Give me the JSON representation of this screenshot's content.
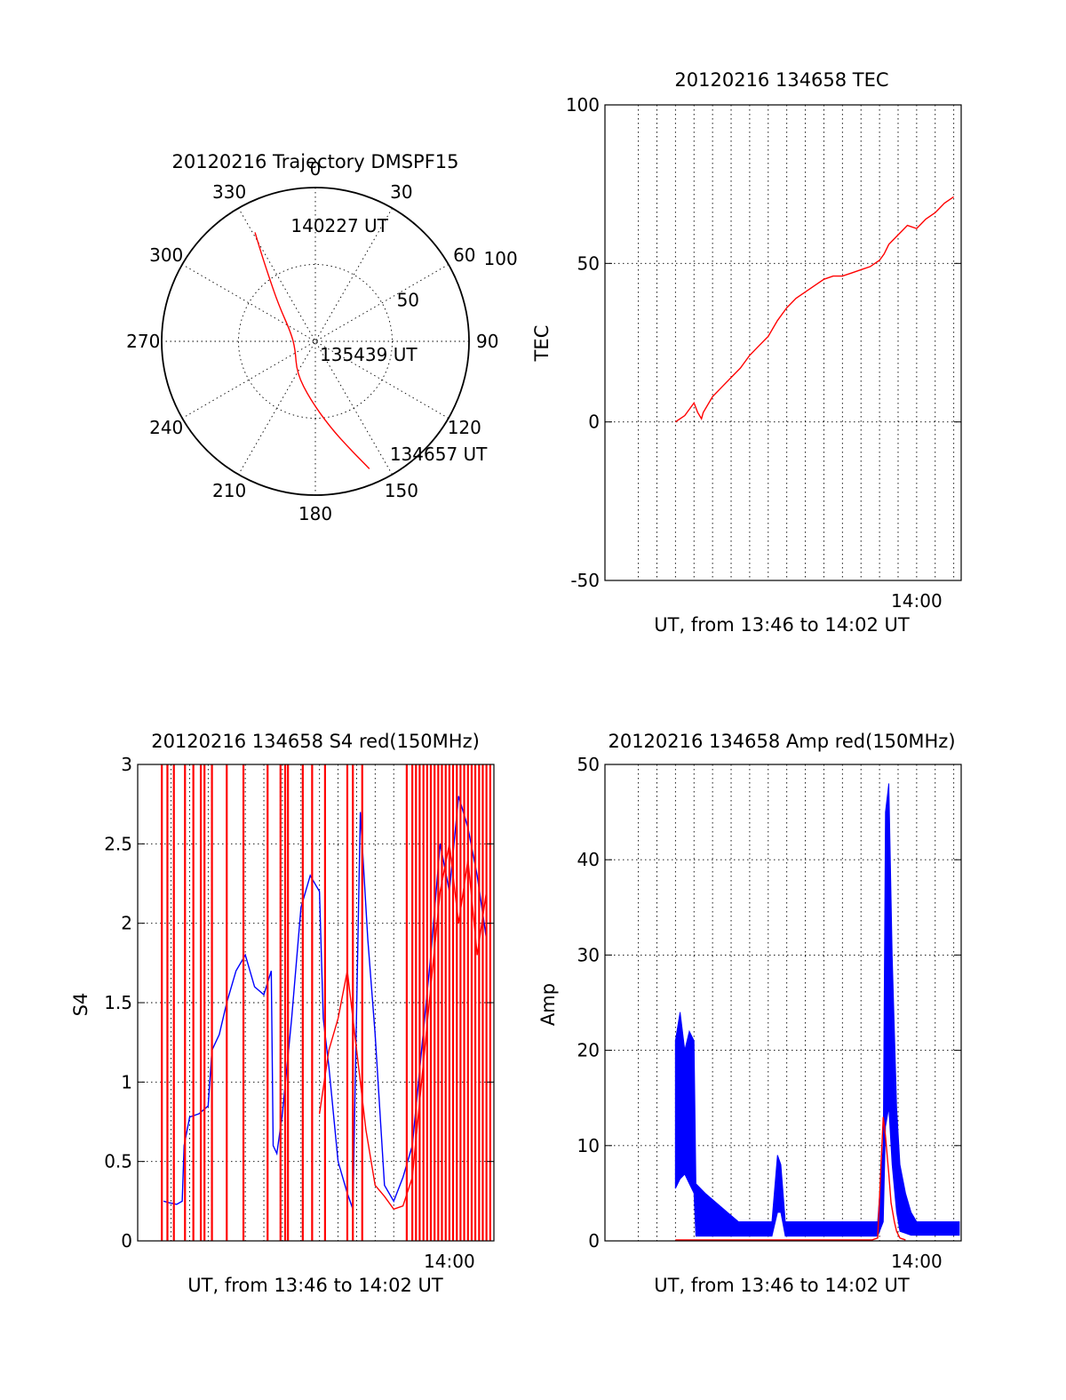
{
  "colors": {
    "red": "#ff0000",
    "blue": "#0000ff",
    "axes": "#000000"
  },
  "chart_data": [
    {
      "type": "polar",
      "title": "20120216 Trajectory DMSPF15",
      "azimuth_labels": [
        "0",
        "30",
        "60",
        "90",
        "120",
        "150",
        "180",
        "210",
        "240",
        "270",
        "300",
        "330"
      ],
      "radial_ticks": [
        "50",
        "100"
      ],
      "r_max": 100,
      "grid": true,
      "series": [
        {
          "color": "red",
          "points": [
            {
              "az": 331,
              "r": 81
            },
            {
              "az": 329,
              "r": 70
            },
            {
              "az": 325,
              "r": 54
            },
            {
              "az": 315,
              "r": 34
            },
            {
              "az": 290,
              "r": 17
            },
            {
              "az": 250,
              "r": 14
            },
            {
              "az": 210,
              "r": 24
            },
            {
              "az": 185,
              "r": 38
            },
            {
              "az": 170,
              "r": 57
            },
            {
              "az": 162,
              "r": 74
            },
            {
              "az": 157,
              "r": 90
            }
          ]
        }
      ],
      "annotations": [
        {
          "text": "140227 UT",
          "az": 346,
          "r": 78
        },
        {
          "text": "135439 UT",
          "az": 180,
          "r": 8
        },
        {
          "text": "134657 UT",
          "az": 148,
          "r": 86
        }
      ]
    },
    {
      "type": "line",
      "title": "20120216 134658 TEC",
      "ylabel": "TEC",
      "xlabel": "UT, from 13:46 to 14:02 UT",
      "x_tick_labels": [
        {
          "x": 14.0,
          "label": "14:00"
        }
      ],
      "xlim": [
        13.72,
        14.04
      ],
      "ylim": [
        -50,
        100
      ],
      "yticks": [
        -50,
        0,
        50,
        100
      ],
      "grid": true,
      "series": [
        {
          "color": "red",
          "x": [
            13.7833,
            13.7917,
            13.8,
            13.8033,
            13.8067,
            13.8083,
            13.8167,
            13.825,
            13.8333,
            13.8417,
            13.85,
            13.8583,
            13.8667,
            13.875,
            13.8833,
            13.8917,
            13.9,
            13.9083,
            13.9167,
            13.925,
            13.9333,
            13.9417,
            13.95,
            13.9583,
            13.9667,
            13.9708,
            13.975,
            13.9833,
            13.9917,
            14.0,
            14.0083,
            14.0167,
            14.025,
            14.0333
          ],
          "y": [
            0,
            2,
            6,
            3,
            1,
            3,
            8,
            11,
            14,
            17,
            21,
            24,
            27,
            32,
            36,
            39,
            41,
            43,
            45,
            46,
            46,
            47,
            48,
            49,
            51,
            53,
            56,
            59,
            62,
            61,
            64,
            66,
            69,
            71
          ]
        }
      ]
    },
    {
      "type": "line",
      "title": "20120216 134658 S4 red(150MHz)",
      "ylabel": "S4",
      "xlabel": "UT, from 13:46 to 14:02 UT",
      "x_tick_labels": [
        {
          "x": 14.0,
          "label": "14:00"
        }
      ],
      "xlim": [
        13.72,
        14.04
      ],
      "ylim": [
        0,
        3
      ],
      "yticks": [
        0,
        0.5,
        1,
        1.5,
        2,
        2.5,
        3
      ],
      "grid": true,
      "series": [
        {
          "color": "blue",
          "x": [
            13.7433,
            13.7483,
            13.755,
            13.76,
            13.7617,
            13.7667,
            13.775,
            13.7833,
            13.7867,
            13.7933,
            13.8,
            13.8083,
            13.8167,
            13.825,
            13.8333,
            13.84,
            13.8417,
            13.845,
            13.85,
            13.8583,
            13.8667,
            13.875,
            13.8833,
            13.8867,
            13.8917,
            13.9,
            13.9083,
            13.9133,
            13.92,
            13.9267,
            13.9333,
            13.9417,
            13.95,
            13.9583,
            13.9667,
            13.975,
            13.9833,
            13.9917,
            14.0,
            14.0083,
            14.0167,
            14.025,
            14.0333
          ],
          "y": [
            0.25,
            0.24,
            0.23,
            0.25,
            0.6,
            0.78,
            0.8,
            0.85,
            1.2,
            1.3,
            1.5,
            1.7,
            1.8,
            1.6,
            1.55,
            1.7,
            0.6,
            0.55,
            0.8,
            1.4,
            2.1,
            2.3,
            2.2,
            1.4,
            1.1,
            0.5,
            0.3,
            0.2,
            2.7,
            1.9,
            1.3,
            0.35,
            0.25,
            0.4,
            0.6,
            1.2,
            1.8,
            2.5,
            2.2,
            2.8,
            2.6,
            2.3,
            1.9
          ]
        },
        {
          "color": "red",
          "x": [
            13.8833,
            13.8917,
            13.9,
            13.9083,
            13.9167,
            13.925,
            13.9333,
            13.9417,
            13.95,
            13.9583,
            13.9667,
            13.975,
            13.9833,
            13.9917,
            14.0,
            14.0083,
            14.0167,
            14.025,
            14.0333
          ],
          "y": [
            0.8,
            1.2,
            1.4,
            1.7,
            1.2,
            0.7,
            0.35,
            0.28,
            0.2,
            0.22,
            0.4,
            1.0,
            1.6,
            2.2,
            2.5,
            2.0,
            2.4,
            1.8,
            2.2
          ]
        },
        {
          "color": "red",
          "style": "spikes",
          "x": [
            13.7417,
            13.7467,
            13.7525,
            13.7625,
            13.77,
            13.7767,
            13.78,
            13.7867,
            13.8,
            13.815,
            13.8367,
            13.8483,
            13.8525,
            13.855,
            13.8683,
            13.8767,
            13.8883,
            13.9083,
            13.9133,
            13.9217,
            13.9617,
            13.9667,
            13.97,
            13.9733,
            13.9767,
            13.98,
            13.9833,
            13.9867,
            13.99,
            13.9933,
            13.9967,
            14.0,
            14.0033,
            14.0067,
            14.01,
            14.0133,
            14.0167,
            14.02,
            14.0233,
            14.0267,
            14.03,
            14.0333,
            14.0367
          ],
          "y": [
            3,
            3,
            3,
            3,
            3,
            3,
            3,
            3,
            3,
            3,
            3,
            3,
            3,
            3,
            3,
            3,
            3,
            3,
            3,
            3,
            3,
            3,
            3,
            3,
            3,
            3,
            3,
            3,
            3,
            3,
            3,
            3,
            3,
            3,
            3,
            3,
            3,
            3,
            3,
            3,
            3,
            3,
            3
          ]
        }
      ]
    },
    {
      "type": "line",
      "title": "20120216 134658 Amp red(150MHz)",
      "ylabel": "Amp",
      "xlabel": "UT, from 13:46 to 14:02 UT",
      "x_tick_labels": [
        {
          "x": 14.0,
          "label": "14:00"
        }
      ],
      "xlim": [
        13.72,
        14.04
      ],
      "ylim": [
        0,
        50
      ],
      "yticks": [
        0,
        10,
        20,
        30,
        40,
        50
      ],
      "grid": true,
      "series": [
        {
          "color": "blue",
          "style": "band",
          "x": [
            13.7833,
            13.7875,
            13.7917,
            13.7958,
            13.8,
            13.8017,
            13.81,
            13.82,
            13.83,
            13.84,
            13.85,
            13.86,
            13.87,
            13.875,
            13.878,
            13.882,
            13.885,
            13.9,
            13.92,
            13.94,
            13.955,
            13.965,
            13.97,
            13.972,
            13.975,
            13.978,
            13.982,
            13.985,
            13.99,
            13.995,
            14.0,
            14.01,
            14.02,
            14.03,
            14.0383
          ],
          "low": [
            5.5,
            6.5,
            7,
            6,
            5,
            0.5,
            0.5,
            0.5,
            0.5,
            0.5,
            0.5,
            0.5,
            0.5,
            3,
            3,
            0.5,
            0.5,
            0.5,
            0.5,
            0.5,
            0.5,
            0.5,
            2,
            12,
            14,
            8,
            3,
            1,
            0.8,
            0.6,
            0.6,
            0.6,
            0.6,
            0.6,
            0.6
          ],
          "high": [
            21,
            24,
            20,
            22,
            21,
            6,
            5,
            4,
            3,
            2,
            2,
            2,
            2,
            9,
            8,
            2,
            2,
            2,
            2,
            2,
            2,
            2,
            10,
            45,
            48,
            30,
            14,
            8,
            5,
            3,
            2,
            2,
            2,
            2,
            2
          ]
        },
        {
          "color": "red",
          "x": [
            13.7833,
            13.79,
            13.8,
            13.8017,
            13.96,
            13.965,
            13.968,
            13.97,
            13.972,
            13.975,
            13.977,
            13.98,
            13.982,
            13.985,
            13.99
          ],
          "y": [
            0.1,
            0.1,
            0.1,
            0.1,
            0.1,
            0.3,
            8,
            13,
            11,
            7,
            4,
            2,
            1,
            0.3,
            0.1
          ]
        }
      ]
    }
  ]
}
